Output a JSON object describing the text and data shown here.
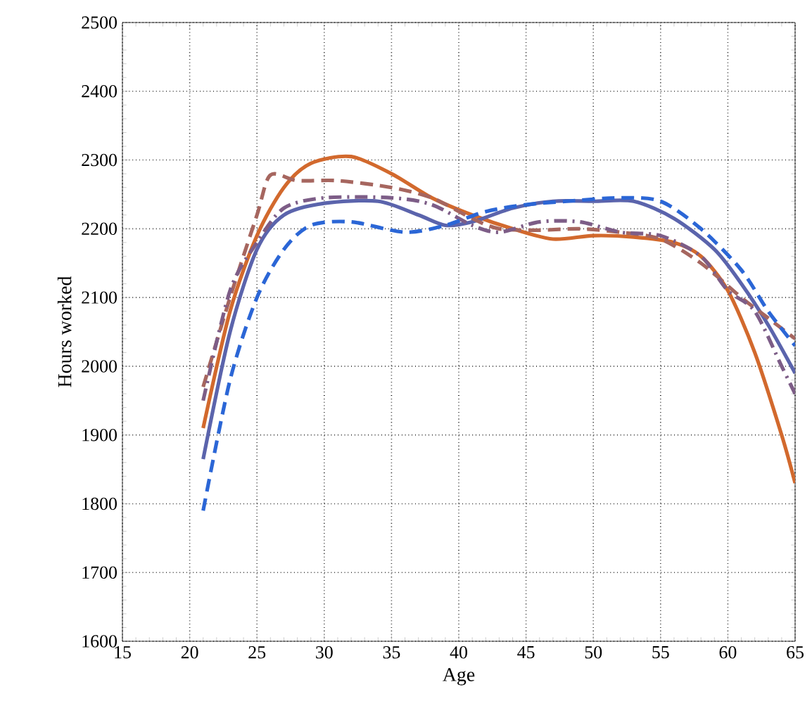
{
  "chart_data": {
    "type": "line",
    "xlabel": "Age",
    "ylabel": "Hours worked",
    "xlim": [
      15,
      65
    ],
    "xticks": [
      15,
      20,
      25,
      30,
      35,
      40,
      45,
      50,
      55,
      60,
      65
    ],
    "ylim": [
      1600,
      2500
    ],
    "yticks": [
      1600,
      1700,
      1800,
      1900,
      2000,
      2100,
      2200,
      2300,
      2400,
      2500
    ],
    "grid": true,
    "series": [
      {
        "color": "#d2692d",
        "line_style": "solid",
        "x": [
          21,
          23,
          25,
          27,
          29,
          32,
          35,
          38,
          41,
          44,
          47,
          50,
          53,
          56,
          58,
          60,
          62,
          64,
          65
        ],
        "values": [
          1910,
          2080,
          2190,
          2260,
          2295,
          2305,
          2280,
          2245,
          2220,
          2200,
          2185,
          2190,
          2188,
          2180,
          2160,
          2110,
          2020,
          1900,
          1830
        ]
      },
      {
        "color": "#5b64ac",
        "line_style": "solid",
        "x": [
          21,
          23,
          25,
          27,
          30,
          34,
          37,
          39,
          41,
          44,
          47,
          50,
          53,
          56,
          59,
          61,
          63,
          65
        ],
        "values": [
          1865,
          2050,
          2170,
          2220,
          2237,
          2240,
          2220,
          2205,
          2210,
          2230,
          2240,
          2240,
          2240,
          2215,
          2170,
          2120,
          2060,
          1990
        ]
      },
      {
        "color": "#a6665f",
        "line_style": "dashed",
        "x": [
          21,
          23,
          25,
          26,
          28,
          31,
          35,
          38,
          41,
          43,
          46,
          49,
          52,
          55,
          58,
          61,
          63,
          65
        ],
        "values": [
          1970,
          2100,
          2220,
          2278,
          2270,
          2270,
          2260,
          2245,
          2215,
          2200,
          2198,
          2200,
          2195,
          2185,
          2150,
          2100,
          2070,
          2040
        ]
      },
      {
        "color": "#7d5d87",
        "line_style": "dashdot",
        "x": [
          21,
          23,
          25,
          27,
          30,
          35,
          38,
          41,
          43,
          46,
          49,
          52,
          55,
          58,
          60,
          62,
          64,
          65
        ],
        "values": [
          1950,
          2110,
          2180,
          2230,
          2245,
          2245,
          2235,
          2205,
          2195,
          2210,
          2210,
          2195,
          2190,
          2160,
          2110,
          2080,
          2000,
          1960
        ]
      },
      {
        "color": "#2b66d6",
        "line_style": "dashed",
        "x": [
          21,
          23,
          25,
          27,
          29,
          32,
          36,
          39,
          42,
          45,
          48,
          52,
          55,
          58,
          61,
          63,
          65
        ],
        "values": [
          1790,
          1980,
          2100,
          2170,
          2205,
          2210,
          2195,
          2205,
          2225,
          2235,
          2240,
          2245,
          2240,
          2200,
          2140,
          2080,
          2030
        ]
      }
    ]
  }
}
